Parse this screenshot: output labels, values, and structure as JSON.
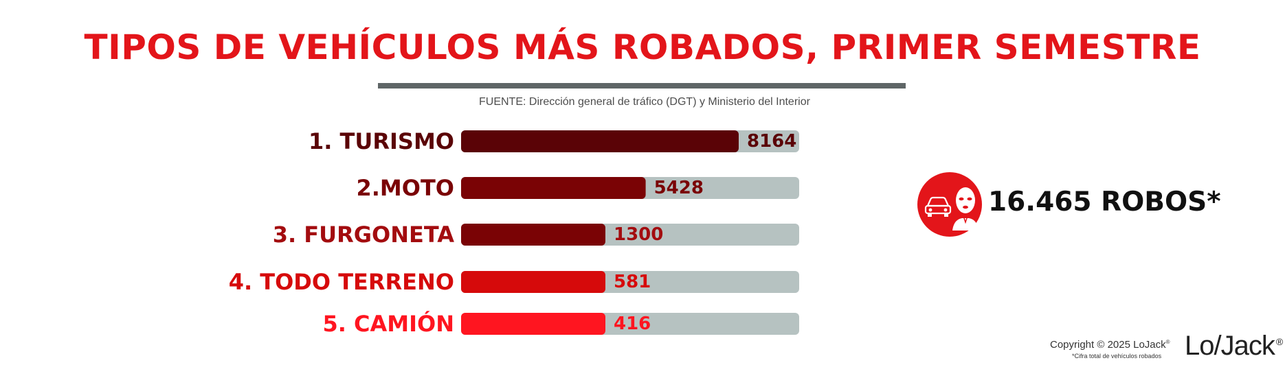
{
  "title": "TIPOS DE VEHÍCULOS MÁS ROBADOS, PRIMER SEMESTRE",
  "source": "FUENTE: Dirección general de tráfico (DGT) y Ministerio del Interior",
  "chart_data": {
    "type": "bar",
    "orientation": "horizontal",
    "title": "TIPOS DE VEHÍCULOS MÁS ROBADOS, PRIMER SEMESTRE",
    "categories": [
      "1. TURISMO",
      "2.MOTO",
      "3. FURGONETA",
      "4. TODO TERRENO",
      "5. CAMIÓN"
    ],
    "values": [
      8164,
      5428,
      1300,
      581,
      416
    ],
    "value_labels": [
      "8164",
      "5428",
      "1300",
      "581",
      "416"
    ],
    "bar_colors": [
      "#5a0306",
      "#7a0305",
      "#7a0305",
      "#d60a0b",
      "#ff1520"
    ],
    "label_colors": [
      "#5a0306",
      "#7a0305",
      "#a30c0f",
      "#d60a0b",
      "#ff1520"
    ],
    "track_color": "#b6c2c1",
    "grid": false,
    "legend": "none"
  },
  "total": {
    "text": "16.465 ROBOS*",
    "icon": "car-thief-icon",
    "icon_color": "#e3151a"
  },
  "footer": {
    "copyright": "Copyright © 2025 LoJack",
    "copyright_mark": "®",
    "footnote": "*Cifra total de vehículos robados",
    "logo_text": "Lo/Jack",
    "logo_mark": "®"
  },
  "colors": {
    "title": "#e3151a",
    "divider": "#5f6667"
  }
}
